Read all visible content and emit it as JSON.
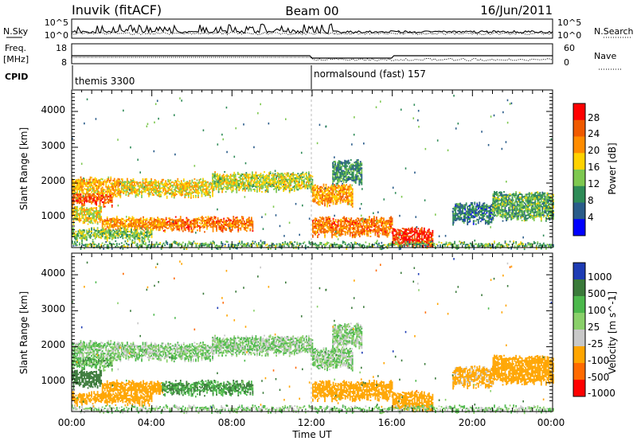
{
  "header": {
    "station": "Inuvik (fitACF)",
    "beam": "Beam 00",
    "date": "16/Jun/2011"
  },
  "noise_panel": {
    "left_label": "N.Sky",
    "right_label": "N.Search",
    "left_ticks": [
      "10^5",
      "10^0"
    ],
    "right_ticks": [
      "10^5",
      "10^0"
    ]
  },
  "freq_panel": {
    "left_label_1": "Freq.",
    "left_label_2": "[MHz]",
    "right_label": "Nave",
    "left_ticks": [
      "18",
      "8"
    ],
    "right_ticks": [
      "60",
      "0"
    ]
  },
  "cpid": {
    "label": "CPID",
    "segments": [
      {
        "text": "themis 3300",
        "start_hour": 0,
        "end_hour": 12
      },
      {
        "text": "normalsound (fast) 157",
        "start_hour": 12,
        "end_hour": 24
      }
    ]
  },
  "x_axis": {
    "label": "Time UT",
    "tick_labels": [
      "00:00",
      "04:00",
      "08:00",
      "12:00",
      "16:00",
      "20:00",
      "00:00"
    ]
  },
  "power_panel": {
    "ylabel": "Slant Range [km]",
    "y_tick_labels": [
      "1000",
      "2000",
      "3000",
      "4000"
    ],
    "colorbar_label": "Power [dB]",
    "colorbar_ticks": [
      "28",
      "24",
      "20",
      "16",
      "12",
      "8",
      "4"
    ],
    "colors": [
      "#ff0000",
      "#f05a00",
      "#ff8c00",
      "#ffd200",
      "#7ec850",
      "#2e8b57",
      "#2a5c8a",
      "#0000ff"
    ]
  },
  "velocity_panel": {
    "ylabel": "Slant Range [km]",
    "y_tick_labels": [
      "1000",
      "2000",
      "3000",
      "4000"
    ],
    "colorbar_label": "Velocity [m s^-1]",
    "colorbar_ticks": [
      "1000",
      "500",
      "100",
      "25",
      "-25",
      "-100",
      "-500",
      "-1000"
    ],
    "colors": [
      "#1e3cb4",
      "#3a7a3a",
      "#4cb84c",
      "#8ad06a",
      "#c8c8c8",
      "#ffa500",
      "#ff6a00",
      "#ff0000"
    ]
  },
  "chart_data": {
    "type": "heatmap",
    "x_unit": "hours UT",
    "x_range": [
      0,
      24
    ],
    "y_unit": "km",
    "y_range": [
      200,
      4600
    ],
    "power_range_dB": [
      0,
      32
    ],
    "velocity_range": [
      -1000,
      1000
    ],
    "backscatter_regions": [
      {
        "t0": 0,
        "t1": 2.5,
        "r0": 1650,
        "r1": 2100,
        "power": 20,
        "velocity": 0
      },
      {
        "t0": 2.5,
        "t1": 7,
        "r0": 1650,
        "r1": 2050,
        "power": 18,
        "velocity": 0
      },
      {
        "t0": 7,
        "t1": 12,
        "r0": 1800,
        "r1": 2250,
        "power": 16,
        "velocity": 0
      },
      {
        "t0": 0,
        "t1": 2,
        "r0": 1400,
        "r1": 1650,
        "power": 26,
        "velocity": 50
      },
      {
        "t0": 0,
        "t1": 1.5,
        "r0": 900,
        "r1": 1300,
        "power": 18,
        "velocity": 200
      },
      {
        "t0": 1.5,
        "t1": 4.5,
        "r0": 700,
        "r1": 1000,
        "power": 22,
        "velocity": -300
      },
      {
        "t0": 4.5,
        "t1": 9,
        "r0": 700,
        "r1": 1000,
        "power": 24,
        "velocity": 100
      },
      {
        "t0": 0,
        "t1": 4,
        "r0": 420,
        "r1": 680,
        "power": 14,
        "velocity": -400
      },
      {
        "t0": 12,
        "t1": 14,
        "r0": 1400,
        "r1": 1900,
        "power": 22,
        "velocity": 0
      },
      {
        "t0": 13,
        "t1": 14.5,
        "r0": 2000,
        "r1": 2600,
        "power": 10,
        "velocity": 0
      },
      {
        "t0": 12,
        "t1": 16,
        "r0": 550,
        "r1": 1000,
        "power": 24,
        "velocity": -200
      },
      {
        "t0": 16,
        "t1": 18,
        "r0": 250,
        "r1": 700,
        "power": 28,
        "velocity": -250
      },
      {
        "t0": 19,
        "t1": 21,
        "r0": 900,
        "r1": 1400,
        "power": 8,
        "velocity": -150
      },
      {
        "t0": 21,
        "t1": 24,
        "r0": 1000,
        "r1": 1700,
        "power": 12,
        "velocity": -300
      },
      {
        "t0": 0,
        "t1": 24,
        "r0": 220,
        "r1": 300,
        "power": 12,
        "velocity": 0
      }
    ]
  }
}
